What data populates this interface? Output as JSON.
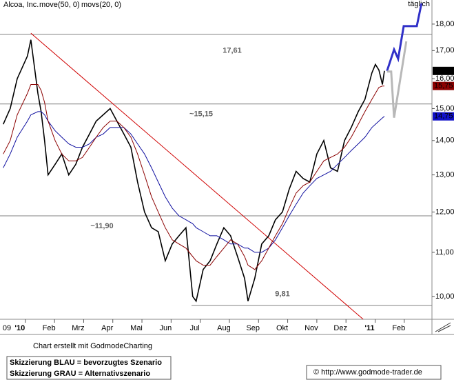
{
  "chart_data": {
    "type": "line",
    "title": "Alcoa, Inc.",
    "period": "täglich",
    "log_scale": true,
    "xlim": [
      -0.87,
      13.95
    ],
    "ylim": [
      9.52,
      18.96
    ],
    "xticks": [
      {
        "value": -1,
        "label": "09"
      },
      {
        "value": 0,
        "label": "'10"
      },
      {
        "value": 1,
        "label": "Feb"
      },
      {
        "value": 2,
        "label": "Mrz"
      },
      {
        "value": 3,
        "label": "Apr"
      },
      {
        "value": 4,
        "label": "Mai"
      },
      {
        "value": 5,
        "label": "Jun"
      },
      {
        "value": 6,
        "label": "Jul"
      },
      {
        "value": 7,
        "label": "Aug"
      },
      {
        "value": 8,
        "label": "Sep"
      },
      {
        "value": 9,
        "label": "Okt"
      },
      {
        "value": 10,
        "label": "Nov"
      },
      {
        "value": 11,
        "label": "Dez"
      },
      {
        "value": 12,
        "label": "'11"
      },
      {
        "value": 13,
        "label": "Feb"
      }
    ],
    "yticks": [
      {
        "value": 10,
        "label": "10,00"
      },
      {
        "value": 11,
        "label": "11,00"
      },
      {
        "value": 12,
        "label": "12,00"
      },
      {
        "value": 13,
        "label": "13,00"
      },
      {
        "value": 14,
        "label": "14,00"
      },
      {
        "value": 15,
        "label": "15,00"
      },
      {
        "value": 16,
        "label": "16,00"
      },
      {
        "value": 17,
        "label": "17,00"
      },
      {
        "value": 18,
        "label": "18,00"
      }
    ],
    "x": [
      -0.76,
      -0.52,
      -0.28,
      0.07,
      0.19,
      0.43,
      0.54,
      0.66,
      0.78,
      1.02,
      1.25,
      1.49,
      1.73,
      1.96,
      2.2,
      2.43,
      2.67,
      2.91,
      3.14,
      3.38,
      3.62,
      3.85,
      4.09,
      4.33,
      4.56,
      4.8,
      5.04,
      5.27,
      5.51,
      5.74,
      5.86,
      6.1,
      6.34,
      6.57,
      6.81,
      7.04,
      7.28,
      7.52,
      7.64,
      7.87,
      8.11,
      8.35,
      8.58,
      8.82,
      9.05,
      9.29,
      9.53,
      9.76,
      10.0,
      10.24,
      10.47,
      10.71,
      10.95,
      11.18,
      11.42,
      11.65,
      11.89,
      12.01,
      12.13,
      12.25,
      12.32
    ],
    "series": [
      {
        "color": "#000000",
        "values": [
          14.5,
          15.0,
          16.0,
          16.8,
          17.4,
          15.5,
          14.9,
          14.0,
          13.0,
          13.3,
          13.6,
          13.0,
          13.3,
          13.8,
          14.2,
          14.6,
          14.8,
          15.0,
          14.6,
          14.2,
          13.8,
          12.8,
          12.0,
          11.6,
          11.5,
          10.8,
          11.2,
          11.4,
          11.6,
          10.0,
          9.9,
          10.6,
          10.8,
          11.2,
          11.6,
          11.4,
          10.9,
          10.4,
          9.9,
          10.4,
          11.2,
          11.4,
          11.8,
          12.0,
          12.6,
          13.1,
          12.9,
          12.8,
          13.6,
          14.0,
          13.2,
          13.1,
          14.0,
          14.4,
          14.9,
          15.3,
          16.2,
          16.5,
          16.3,
          15.8,
          16.27
        ]
      },
      {
        "name": "move(50, 0)",
        "color": "#1010a0",
        "label_color": "#e0a050",
        "values": [
          13.2,
          13.6,
          14.1,
          14.6,
          14.8,
          14.9,
          14.9,
          14.8,
          14.6,
          14.3,
          14.1,
          13.9,
          13.8,
          13.8,
          13.9,
          14.1,
          14.2,
          14.4,
          14.4,
          14.4,
          14.2,
          13.9,
          13.6,
          13.2,
          12.8,
          12.4,
          12.1,
          11.9,
          11.8,
          11.7,
          11.6,
          11.5,
          11.4,
          11.4,
          11.3,
          11.2,
          11.2,
          11.1,
          11.1,
          11.0,
          11.0,
          11.1,
          11.3,
          11.6,
          11.9,
          12.2,
          12.5,
          12.7,
          12.9,
          13.0,
          13.1,
          13.3,
          13.5,
          13.7,
          13.9,
          14.1,
          14.4,
          14.5,
          14.6,
          14.7,
          14.75
        ]
      },
      {
        "name": "movs(20, 0)",
        "color": "#8b0000",
        "label_color": "#e0a050",
        "values": [
          13.6,
          14.0,
          14.8,
          15.5,
          15.8,
          15.8,
          15.6,
          15.2,
          14.6,
          14.0,
          13.6,
          13.4,
          13.4,
          13.5,
          13.8,
          14.1,
          14.4,
          14.6,
          14.6,
          14.4,
          14.1,
          13.6,
          13.0,
          12.4,
          12.0,
          11.6,
          11.3,
          11.2,
          11.1,
          10.9,
          10.8,
          10.7,
          10.7,
          10.9,
          11.1,
          11.3,
          11.2,
          10.9,
          10.7,
          10.6,
          10.8,
          11.1,
          11.4,
          11.7,
          12.1,
          12.5,
          12.7,
          12.8,
          13.1,
          13.4,
          13.5,
          13.6,
          13.8,
          14.1,
          14.5,
          14.9,
          15.3,
          15.5,
          15.7,
          15.75,
          15.75
        ]
      }
    ],
    "levels": [
      {
        "value": 17.61,
        "label": "17,61"
      },
      {
        "value": 15.15,
        "label": "~15,15"
      },
      {
        "value": 11.9,
        "label": "~11,90"
      },
      {
        "value": 9.81,
        "label": "9,81"
      }
    ],
    "trendline": {
      "color": "#d00000",
      "x": [
        0.19,
        11.59
      ],
      "values": [
        17.65,
        9.52
      ]
    },
    "scenarios": [
      {
        "color": "#3030c8",
        "x": [
          12.41,
          12.65,
          12.79,
          12.98,
          13.43,
          13.59
        ],
        "values": [
          16.27,
          17.04,
          16.7,
          17.92,
          17.92,
          18.82
        ]
      },
      {
        "color": "#b8b8b8",
        "x": [
          12.41,
          12.55,
          12.65,
          13.07
        ],
        "values": [
          16.25,
          16.25,
          14.71,
          17.34
        ]
      }
    ],
    "price_tags": [
      {
        "value": 16.27,
        "label": "16,27",
        "color": "#000000"
      },
      {
        "value": 15.75,
        "label": "15,75",
        "color": "#8b0000"
      },
      {
        "value": 14.75,
        "label": "14,75",
        "color": "#1010c8"
      }
    ],
    "credit": "Chart erstellt mit GodmodeCharting",
    "legend_box": [
      "Skizzierung BLAU = bevorzugtes Szenario",
      "Skizzierung GRAU = Alternativszenario"
    ],
    "copyright": "© http://www.godmode-trader.de"
  }
}
